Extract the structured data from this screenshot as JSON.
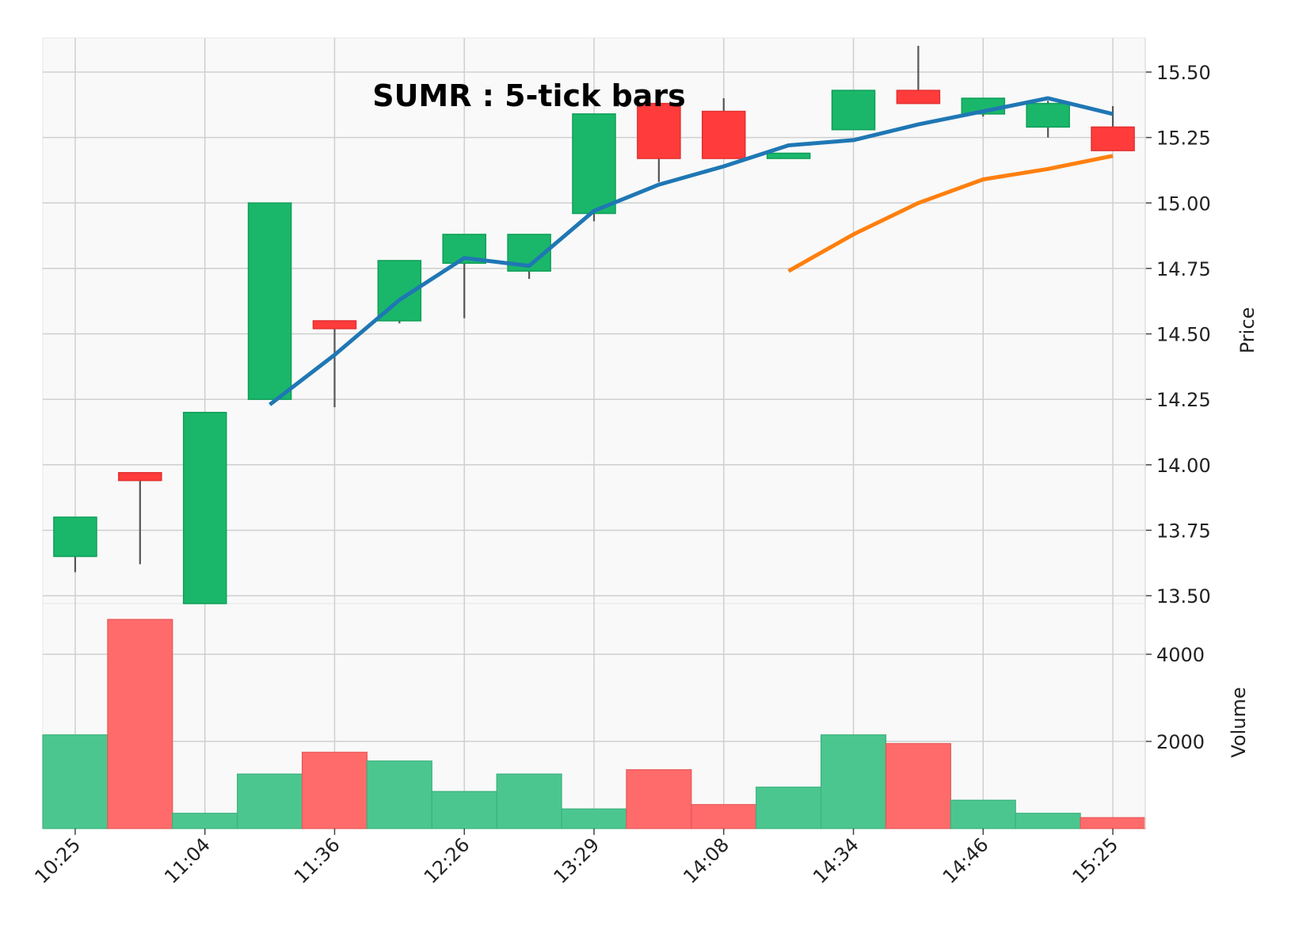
{
  "chart_data": {
    "type": "candlestick",
    "title": "SUMR : 5-tick bars",
    "ylabel_price": "Price",
    "ylabel_volume": "Volume",
    "price_ylim": [
      13.47,
      15.63
    ],
    "price_yticks": [
      "13.50",
      "13.75",
      "14.00",
      "14.25",
      "14.50",
      "14.75",
      "15.00",
      "15.25",
      "15.50"
    ],
    "volume_ylim": [
      0,
      4800
    ],
    "volume_yticks": [
      "2000",
      "4000"
    ],
    "x_tick_labels": [
      "10:25",
      "11:04",
      "11:36",
      "12:26",
      "13:29",
      "14:08",
      "14:34",
      "14:46",
      "15:25"
    ],
    "grid": true,
    "colors": {
      "up": "#1ab76b",
      "down": "#ff3b3b",
      "up_volume": "#4cc68f",
      "down_volume": "#ff6b6b",
      "wick": "#555555",
      "ma_short": "#1f77b4",
      "ma_long": "#ff7f0e",
      "background": "#f9f9f9",
      "grid": "#cfcfcf"
    },
    "candles": [
      {
        "open": 13.65,
        "high": 13.8,
        "low": 13.59,
        "close": 13.8,
        "volume": 2150
      },
      {
        "open": 13.97,
        "high": 13.97,
        "low": 13.62,
        "close": 13.94,
        "volume": 4800
      },
      {
        "open": 13.47,
        "high": 14.2,
        "low": 13.47,
        "close": 14.2,
        "volume": 350
      },
      {
        "open": 14.25,
        "high": 15.0,
        "low": 14.25,
        "close": 15.0,
        "volume": 1250
      },
      {
        "open": 14.55,
        "high": 14.55,
        "low": 14.22,
        "close": 14.52,
        "volume": 1750
      },
      {
        "open": 14.55,
        "high": 14.78,
        "low": 14.54,
        "close": 14.78,
        "volume": 1550
      },
      {
        "open": 14.77,
        "high": 14.88,
        "low": 14.56,
        "close": 14.88,
        "volume": 850
      },
      {
        "open": 14.74,
        "high": 14.88,
        "low": 14.71,
        "close": 14.88,
        "volume": 1250
      },
      {
        "open": 14.96,
        "high": 15.34,
        "low": 14.93,
        "close": 15.34,
        "volume": 450
      },
      {
        "open": 15.38,
        "high": 15.38,
        "low": 15.08,
        "close": 15.17,
        "volume": 1350
      },
      {
        "open": 15.35,
        "high": 15.4,
        "low": 15.17,
        "close": 15.17,
        "volume": 550
      },
      {
        "open": 15.17,
        "high": 15.19,
        "low": 15.17,
        "close": 15.19,
        "volume": 950
      },
      {
        "open": 15.28,
        "high": 15.43,
        "low": 15.28,
        "close": 15.43,
        "volume": 2150
      },
      {
        "open": 15.43,
        "high": 15.6,
        "low": 15.38,
        "close": 15.38,
        "volume": 1950
      },
      {
        "open": 15.34,
        "high": 15.4,
        "low": 15.33,
        "close": 15.4,
        "volume": 650
      },
      {
        "open": 15.29,
        "high": 15.39,
        "low": 15.25,
        "close": 15.38,
        "volume": 350
      },
      {
        "open": 15.29,
        "high": 15.37,
        "low": 15.2,
        "close": 15.2,
        "volume": 250
      }
    ],
    "series": [
      {
        "values": [
          null,
          null,
          null,
          14.23,
          14.42,
          14.63,
          14.79,
          14.76,
          14.97,
          15.07,
          15.14,
          15.22,
          15.24,
          15.3,
          15.35,
          15.4,
          15.34
        ]
      },
      {
        "values": [
          null,
          null,
          null,
          null,
          null,
          null,
          null,
          null,
          null,
          null,
          null,
          14.74,
          14.88,
          15.0,
          15.09,
          15.13,
          15.18
        ]
      }
    ]
  }
}
